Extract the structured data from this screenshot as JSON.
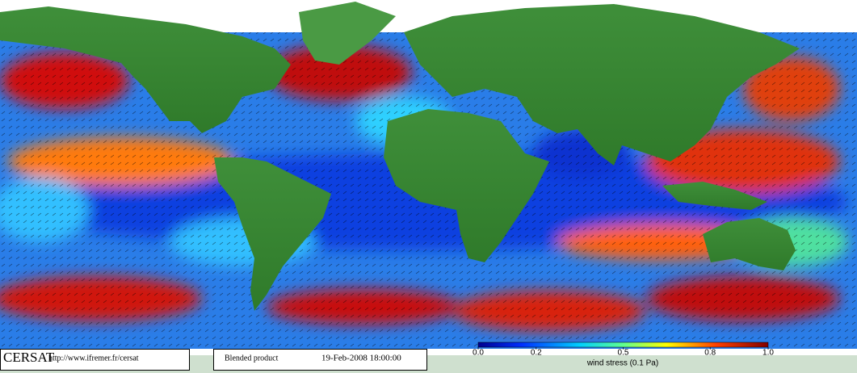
{
  "logo": "CERSAT",
  "url": "http://www.ifremer.fr/cersat",
  "product": "Blended product",
  "timestamp": "19-Feb-2008 18:00:00",
  "colorbar": {
    "label": "wind stress (0.1 Pa)",
    "lim": [
      0,
      1
    ],
    "ticks": [
      {
        "value": 0,
        "label": "0.0"
      },
      0.2,
      0.5,
      0.8,
      {
        "value": 1,
        "label": "1.0"
      }
    ]
  }
}
